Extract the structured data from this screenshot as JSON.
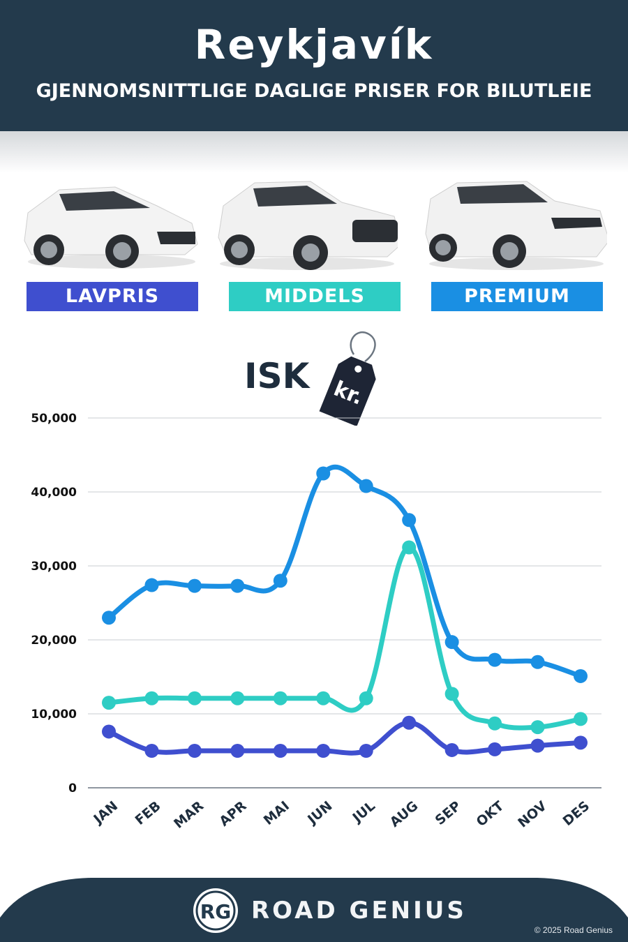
{
  "header": {
    "title": "Reykjavík",
    "subtitle": "GJENNOMSNITTLIGE DAGLIGE PRISER FOR BILUTLEIE"
  },
  "categories": [
    {
      "label": "LAVPRIS",
      "color": "#3f4fcf"
    },
    {
      "label": "MIDDELS",
      "color": "#2ecdc4"
    },
    {
      "label": "PREMIUM",
      "color": "#1a8fe3"
    }
  ],
  "currency": {
    "label": "ISK",
    "tag_text": "kr."
  },
  "chart_data": {
    "type": "line",
    "categories": [
      "JAN",
      "FEB",
      "MAR",
      "APR",
      "MAI",
      "JUN",
      "JUL",
      "AUG",
      "SEP",
      "OKT",
      "NOV",
      "DES"
    ],
    "series": [
      {
        "name": "PREMIUM",
        "color": "#1a8fe3",
        "values": [
          23000,
          27400,
          27300,
          27300,
          28000,
          42500,
          40800,
          36200,
          19700,
          17300,
          17000,
          15100
        ]
      },
      {
        "name": "MIDDELS",
        "color": "#2ecdc4",
        "values": [
          11500,
          12100,
          12100,
          12100,
          12100,
          12100,
          12100,
          32500,
          12700,
          8700,
          8200,
          9300
        ]
      },
      {
        "name": "LAVPRIS",
        "color": "#3f4fcf",
        "values": [
          7600,
          5000,
          5000,
          5000,
          5000,
          5000,
          5000,
          8800,
          5100,
          5200,
          5700,
          6100
        ]
      }
    ],
    "yticks": [
      "50,000",
      "40,000",
      "30,000",
      "20,000",
      "10,000",
      "0"
    ],
    "ylim": [
      0,
      50000
    ],
    "grid": true
  },
  "footer": {
    "brand": "ROAD GENIUS",
    "logo_text": "RG",
    "copyright": "© 2025 Road Genius"
  }
}
